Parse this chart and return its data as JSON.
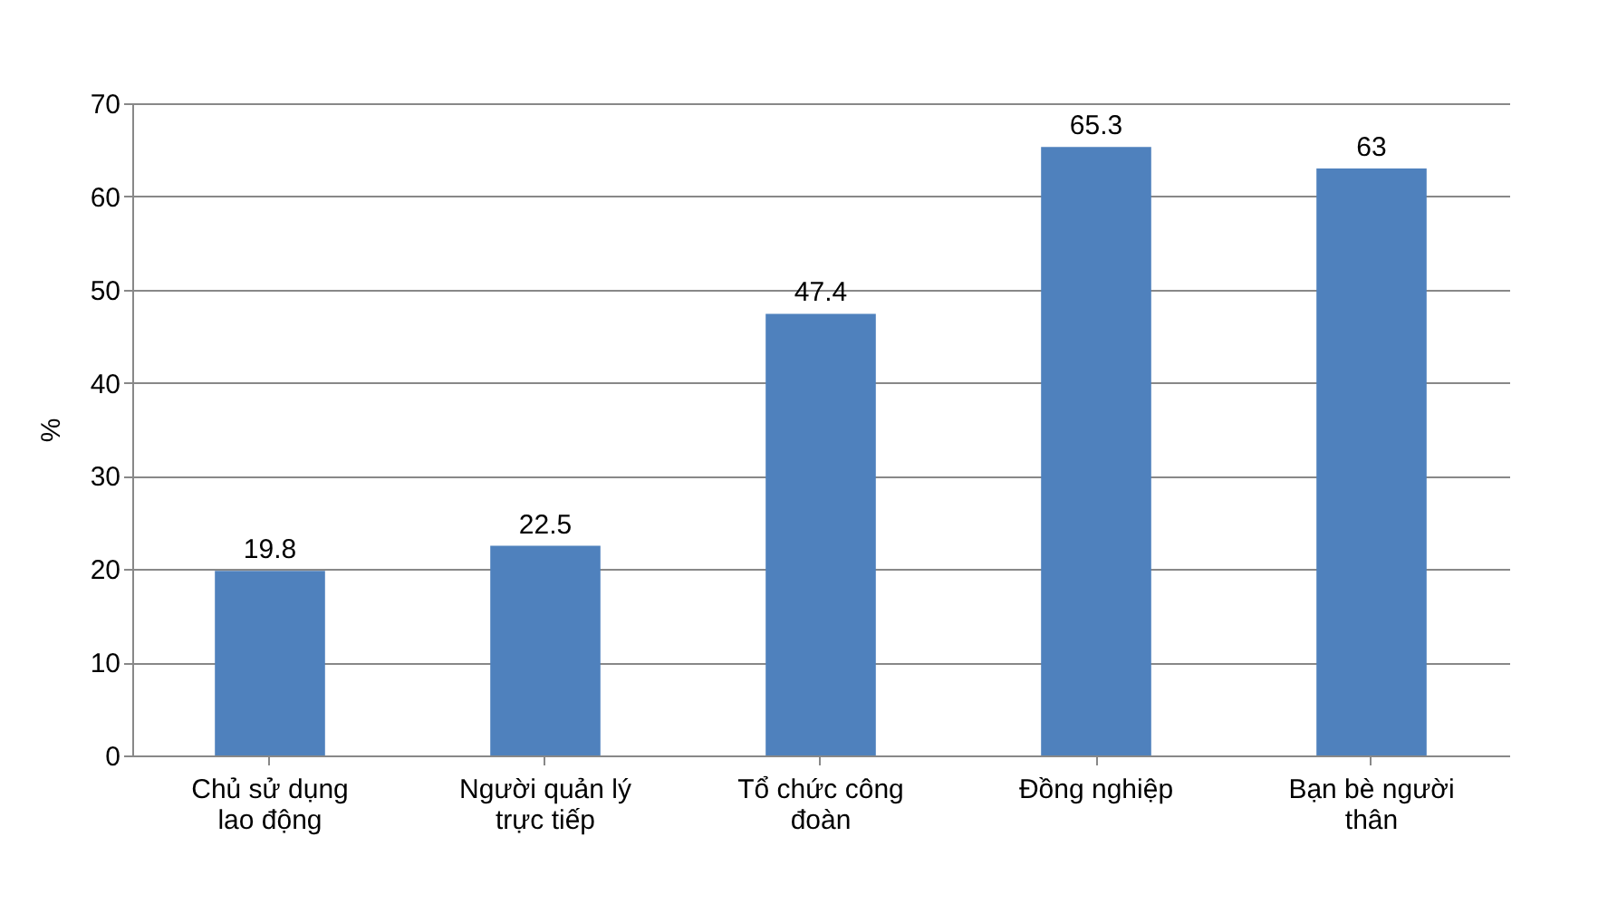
{
  "chart_data": {
    "type": "bar",
    "ylabel": "%",
    "categories": [
      "Chủ sử dụng lao động",
      "Người quản lý trực tiếp",
      "Tổ chức công đoàn",
      "Đồng nghiệp",
      "Bạn bè người thân"
    ],
    "values": [
      19.8,
      22.5,
      47.4,
      65.3,
      63
    ],
    "color": "#4f81bd",
    "ylim": [
      0,
      70
    ],
    "yticks": [
      0,
      10,
      20,
      30,
      40,
      50,
      60,
      70
    ],
    "grid": "y",
    "data_labels": true
  }
}
